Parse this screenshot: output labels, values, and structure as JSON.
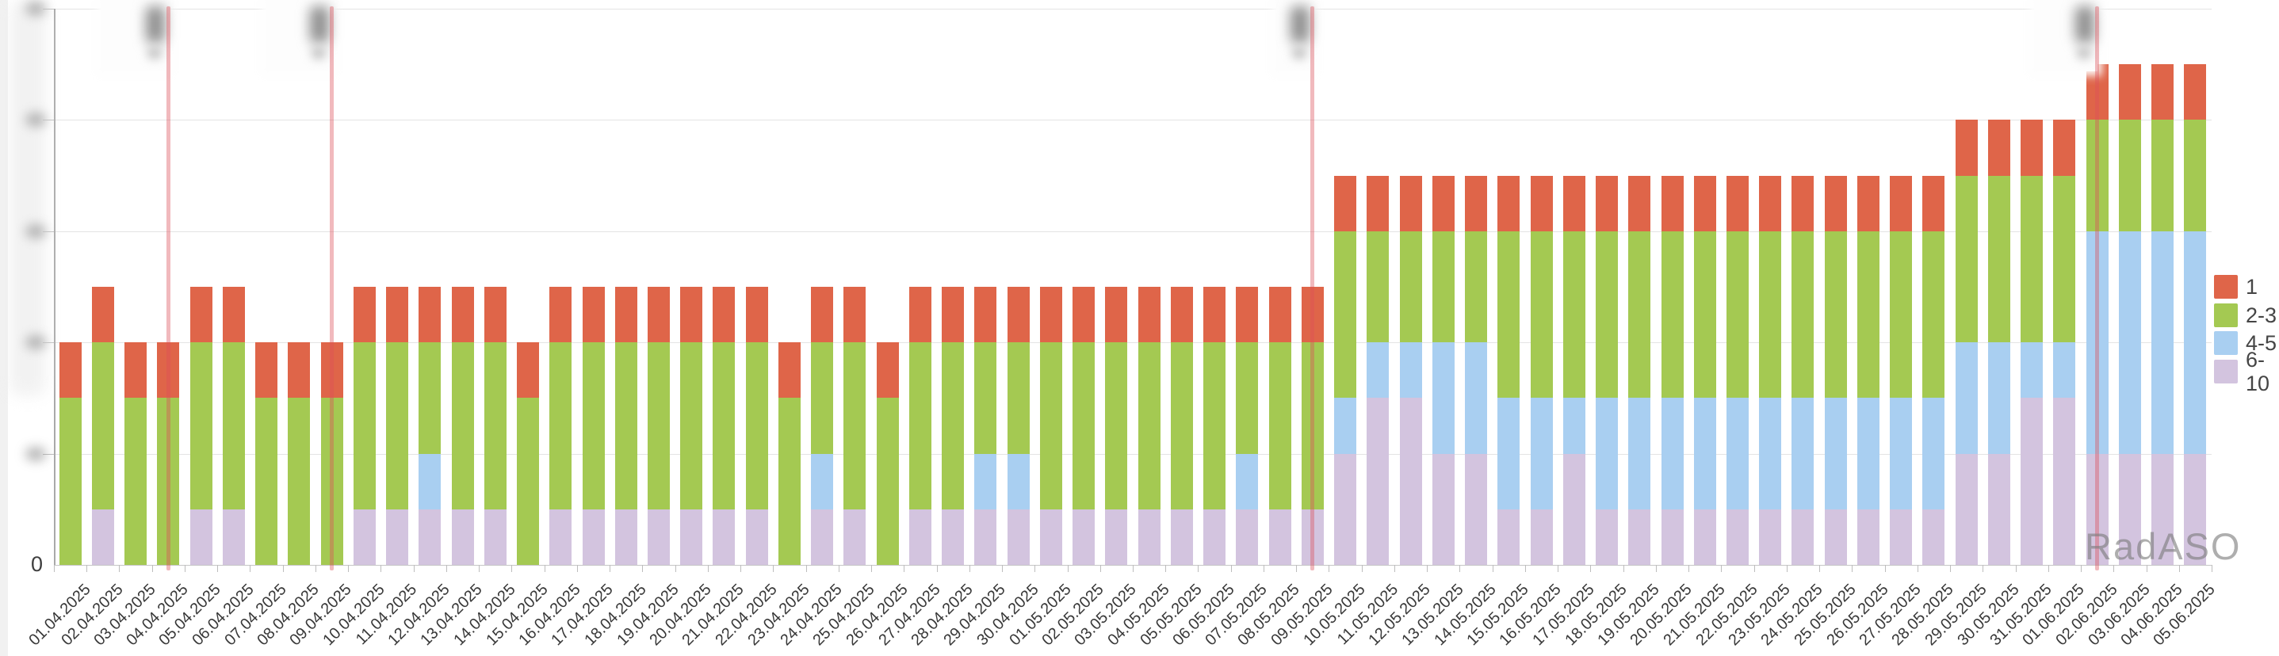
{
  "watermark": "RadASO",
  "y_axis": {
    "zero_label": "0",
    "max": 50,
    "step": 10,
    "tick_labels_redacted": true
  },
  "annotations": {
    "note": "vertical event marker lines with blurred labels",
    "line_color": "rgba(219,80,90,0.40)",
    "items": [
      {
        "date": "04.04.2025",
        "label_redacted": true
      },
      {
        "date": "09.04.2025",
        "label_redacted": true
      },
      {
        "date": "09.05.2025",
        "label_redacted": true
      },
      {
        "date": "02.06.2025",
        "label_redacted": true
      }
    ]
  },
  "chart_data": {
    "type": "bar",
    "stacked": true,
    "grid": true,
    "legend_position": "right",
    "ylim": [
      0,
      50
    ],
    "xlabel": "",
    "ylabel": "",
    "categories": [
      "01.04.2025",
      "02.04.2025",
      "03.04.2025",
      "04.04.2025",
      "05.04.2025",
      "06.04.2025",
      "07.04.2025",
      "08.04.2025",
      "09.04.2025",
      "10.04.2025",
      "11.04.2025",
      "12.04.2025",
      "13.04.2025",
      "14.04.2025",
      "15.04.2025",
      "16.04.2025",
      "17.04.2025",
      "18.04.2025",
      "19.04.2025",
      "20.04.2025",
      "21.04.2025",
      "22.04.2025",
      "23.04.2025",
      "24.04.2025",
      "25.04.2025",
      "26.04.2025",
      "27.04.2025",
      "28.04.2025",
      "29.04.2025",
      "30.04.2025",
      "01.05.2025",
      "02.05.2025",
      "03.05.2025",
      "04.05.2025",
      "05.05.2025",
      "06.05.2025",
      "07.05.2025",
      "08.05.2025",
      "09.05.2025",
      "10.05.2025",
      "11.05.2025",
      "12.05.2025",
      "13.05.2025",
      "14.05.2025",
      "15.05.2025",
      "16.05.2025",
      "17.05.2025",
      "18.05.2025",
      "19.05.2025",
      "20.05.2025",
      "21.05.2025",
      "22.05.2025",
      "23.05.2025",
      "24.05.2025",
      "25.05.2025",
      "26.05.2025",
      "27.05.2025",
      "28.05.2025",
      "29.05.2025",
      "30.05.2025",
      "31.05.2025",
      "01.06.2025",
      "02.06.2025",
      "03.06.2025",
      "04.06.2025",
      "05.06.2025"
    ],
    "series": [
      {
        "name": "1",
        "color": "#df6549",
        "values": [
          5,
          5,
          5,
          5,
          5,
          5,
          5,
          5,
          5,
          5,
          5,
          5,
          5,
          5,
          5,
          5,
          5,
          5,
          5,
          5,
          5,
          5,
          5,
          5,
          5,
          5,
          5,
          5,
          5,
          5,
          5,
          5,
          5,
          5,
          5,
          5,
          5,
          5,
          5,
          5,
          5,
          5,
          5,
          5,
          5,
          5,
          5,
          5,
          5,
          5,
          5,
          5,
          5,
          5,
          5,
          5,
          5,
          5,
          5,
          5,
          5,
          5,
          5,
          5,
          5,
          5
        ]
      },
      {
        "name": "2-3",
        "color": "#a4c952",
        "values": [
          15,
          15,
          15,
          15,
          15,
          15,
          15,
          15,
          15,
          15,
          15,
          10,
          15,
          15,
          15,
          15,
          15,
          15,
          15,
          15,
          15,
          15,
          15,
          10,
          15,
          15,
          15,
          15,
          10,
          10,
          15,
          15,
          15,
          15,
          15,
          15,
          10,
          15,
          15,
          15,
          10,
          10,
          10,
          10,
          15,
          15,
          15,
          15,
          15,
          15,
          15,
          15,
          15,
          15,
          15,
          15,
          15,
          15,
          15,
          15,
          15,
          15,
          10,
          10,
          10,
          10
        ]
      },
      {
        "name": "4-5",
        "color": "#a9cff1",
        "values": [
          0,
          0,
          0,
          0,
          0,
          0,
          0,
          0,
          0,
          0,
          0,
          5,
          0,
          0,
          0,
          0,
          0,
          0,
          0,
          0,
          0,
          0,
          0,
          5,
          0,
          0,
          0,
          0,
          5,
          5,
          0,
          0,
          0,
          0,
          0,
          0,
          5,
          0,
          0,
          5,
          5,
          5,
          10,
          10,
          10,
          10,
          5,
          10,
          10,
          10,
          10,
          10,
          10,
          10,
          10,
          10,
          10,
          10,
          10,
          10,
          5,
          5,
          20,
          20,
          20,
          20
        ]
      },
      {
        "name": "6-10",
        "color": "#d3c4df",
        "values": [
          0,
          5,
          0,
          0,
          5,
          5,
          0,
          0,
          0,
          5,
          5,
          5,
          5,
          5,
          0,
          5,
          5,
          5,
          5,
          5,
          5,
          5,
          0,
          5,
          5,
          0,
          5,
          5,
          5,
          5,
          5,
          5,
          5,
          5,
          5,
          5,
          5,
          5,
          5,
          10,
          15,
          15,
          10,
          10,
          5,
          5,
          10,
          5,
          5,
          5,
          5,
          5,
          5,
          5,
          5,
          5,
          5,
          5,
          10,
          10,
          15,
          15,
          10,
          10,
          10,
          10
        ]
      }
    ]
  }
}
